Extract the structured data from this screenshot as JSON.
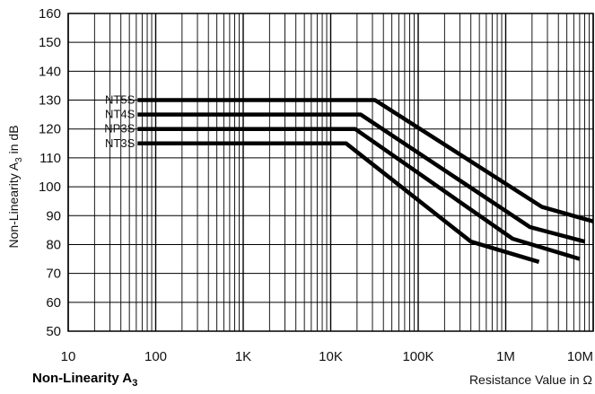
{
  "chart_data": {
    "type": "line",
    "title_main": "Non-Linearity A",
    "title_sub": "3",
    "xlabel": "Resistance Value in Ω",
    "ylabel_main": "Non-Linearity A",
    "ylabel_sub": "3",
    "ylabel_tail": " in dB",
    "x_scale": "log",
    "xlim": [
      10,
      10000000
    ],
    "ylim": [
      50,
      160
    ],
    "x_ticks": [
      10,
      100,
      1000,
      10000,
      100000,
      1000000,
      10000000
    ],
    "x_tick_labels": [
      "10",
      "100",
      "1K",
      "10K",
      "100K",
      "1M",
      "10M"
    ],
    "y_ticks": [
      50,
      60,
      70,
      80,
      90,
      100,
      110,
      120,
      130,
      140,
      150,
      160
    ],
    "y_tick_labels": [
      "50",
      "60",
      "70",
      "80",
      "90",
      "100",
      "110",
      "120",
      "130",
      "140",
      "150",
      "160"
    ],
    "grid": true,
    "series": [
      {
        "name": "NT5S",
        "points": [
          [
            62,
            130
          ],
          [
            32000,
            130
          ],
          [
            2600000,
            93
          ],
          [
            10000000,
            88
          ]
        ]
      },
      {
        "name": "NT4S",
        "points": [
          [
            62,
            125
          ],
          [
            22000,
            125
          ],
          [
            1900000,
            86
          ],
          [
            8000000,
            81
          ]
        ]
      },
      {
        "name": "NP3S",
        "points": [
          [
            62,
            120
          ],
          [
            19000,
            120
          ],
          [
            1200000,
            82
          ],
          [
            7000000,
            75
          ]
        ]
      },
      {
        "name": "NT3S",
        "points": [
          [
            62,
            115
          ],
          [
            15000,
            115
          ],
          [
            400000,
            81
          ],
          [
            2400000,
            74
          ]
        ]
      }
    ]
  }
}
